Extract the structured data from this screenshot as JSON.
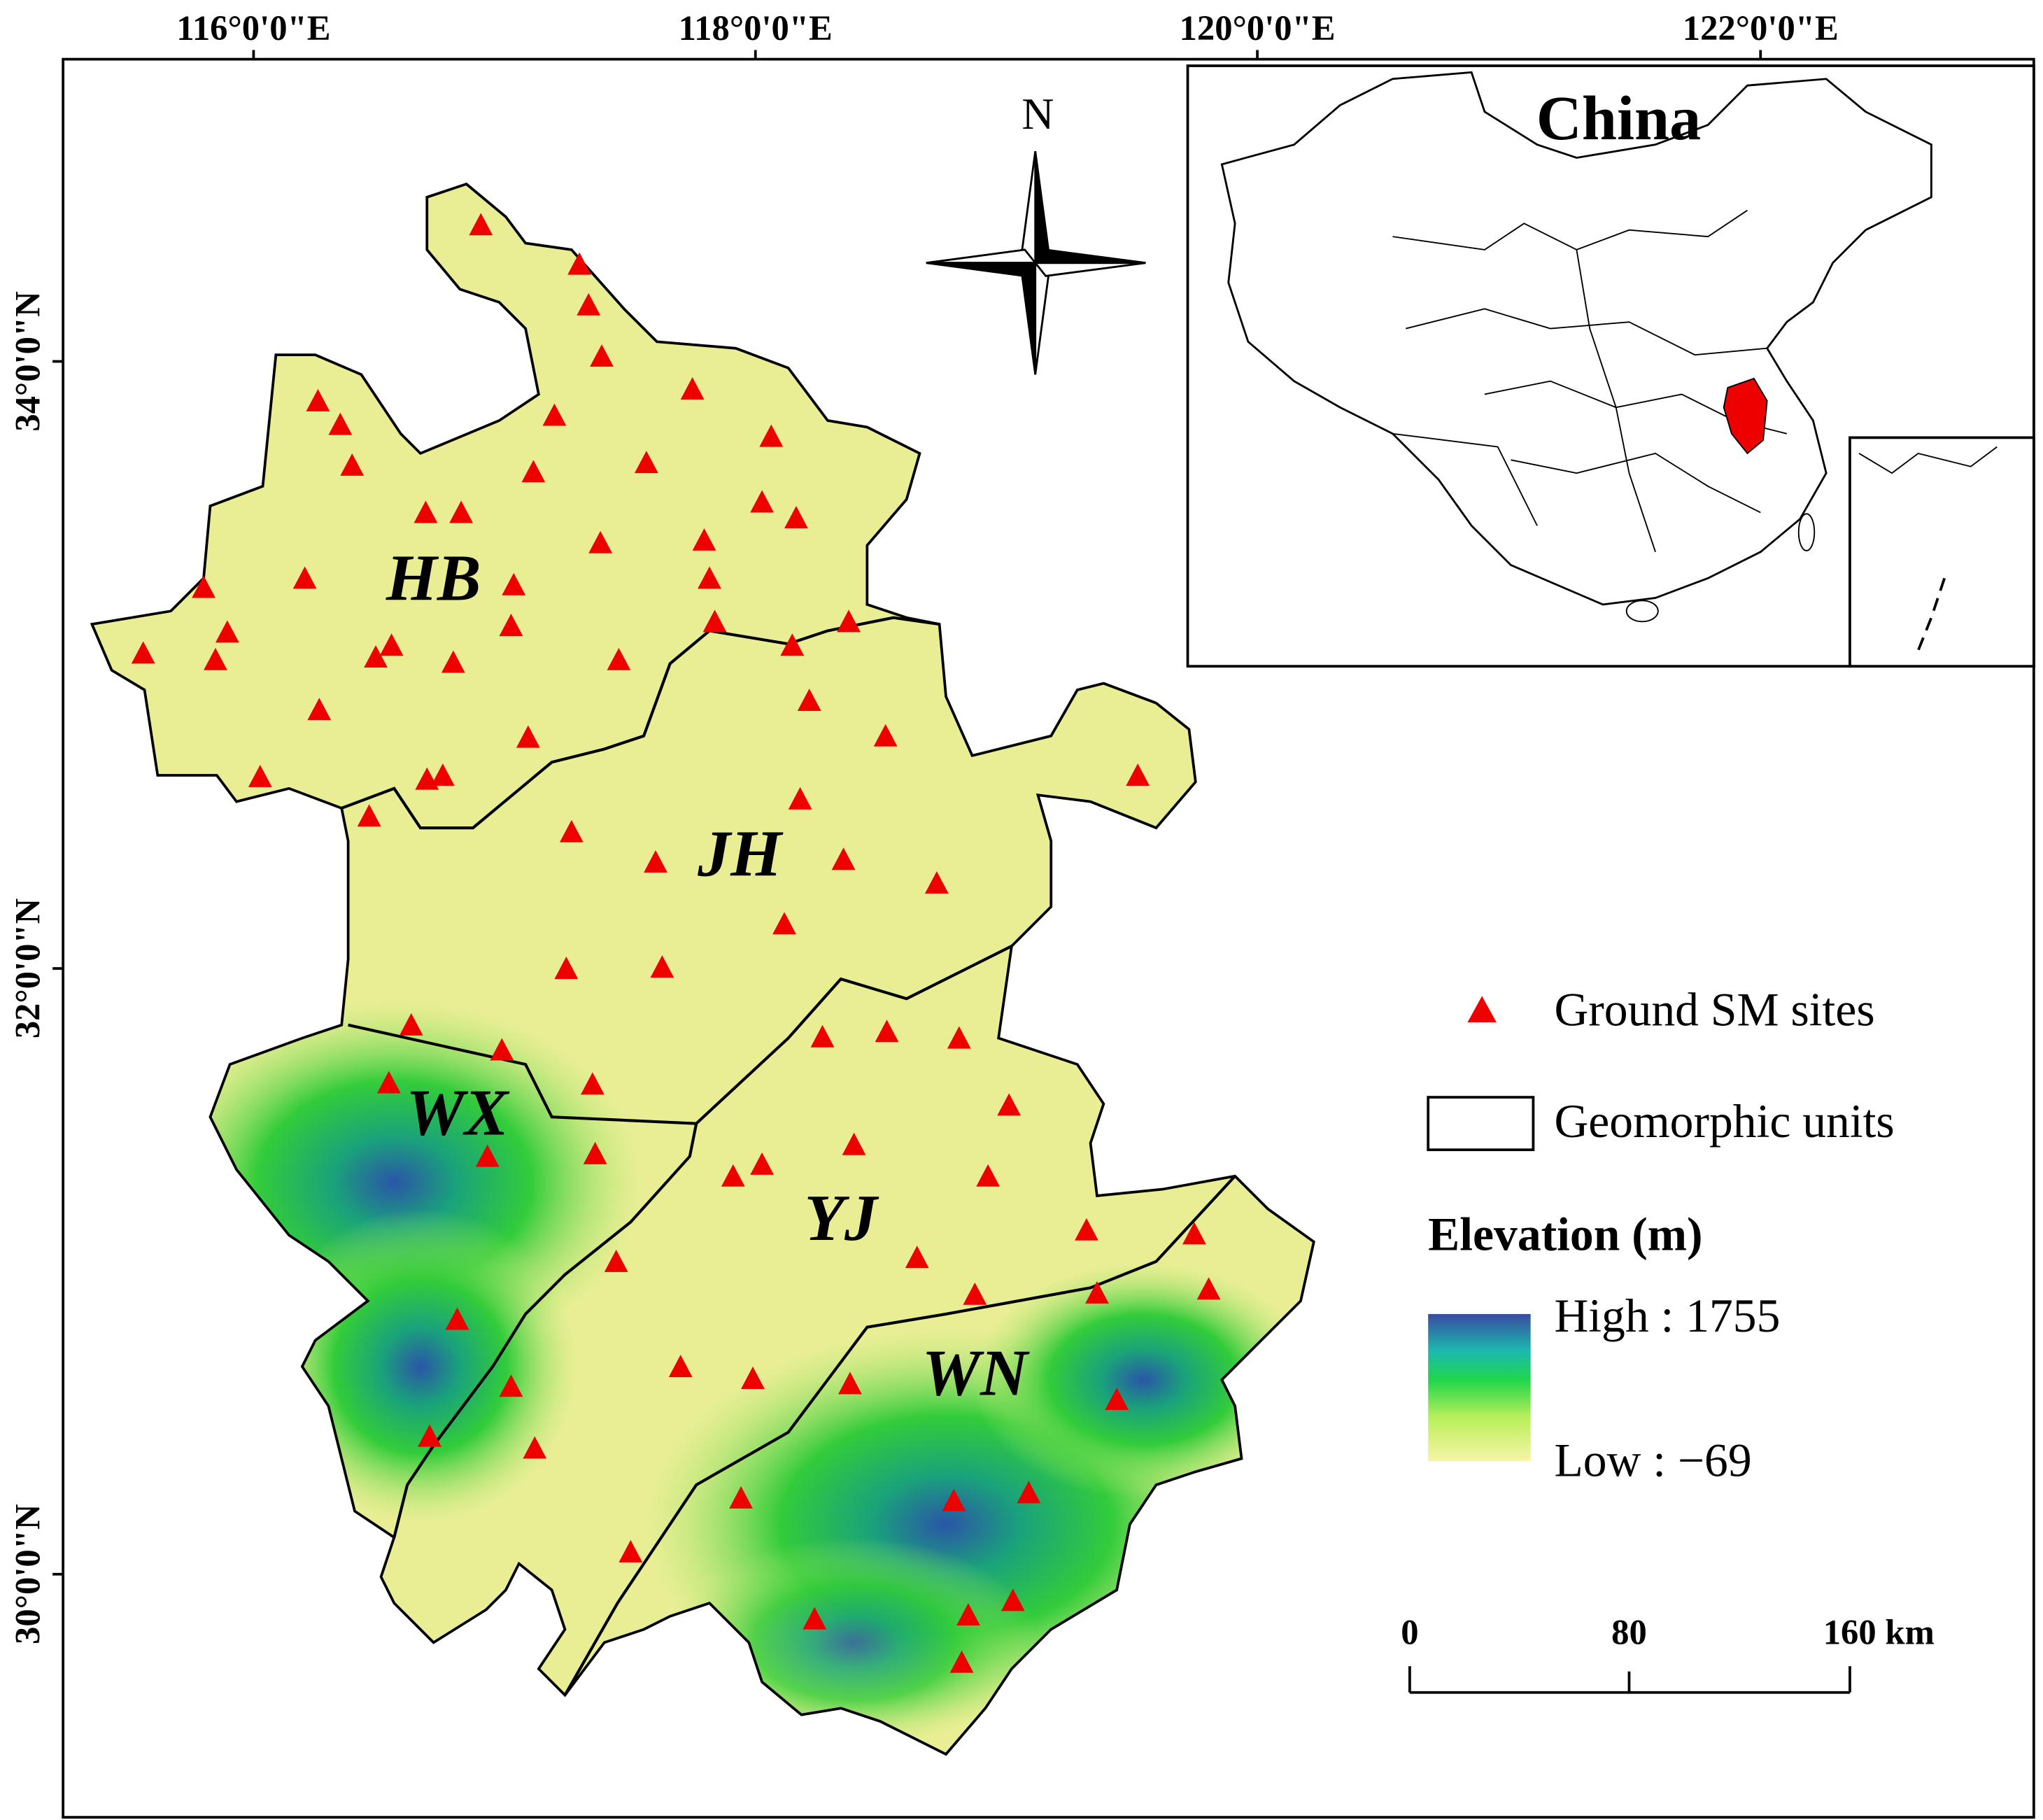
{
  "map": {
    "x_labels": [
      "116°0'0\"E",
      "118°0'0\"E",
      "120°0'0\"E",
      "122°0'0\"E"
    ],
    "y_labels": [
      "34°0'0\"N",
      "32°0'0\"N",
      "30°0'0\"N"
    ],
    "regions": [
      "HB",
      "JH",
      "WX",
      "YJ",
      "WN"
    ],
    "north": "N",
    "inset_title": "China",
    "legend": {
      "sites": "Ground SM sites",
      "units": "Geomorphic units",
      "elevation_title": "Elevation (m)",
      "high": "High : 1755",
      "low": "Low : −69"
    },
    "scale_bar": [
      "0",
      "80",
      "160 km"
    ]
  }
}
